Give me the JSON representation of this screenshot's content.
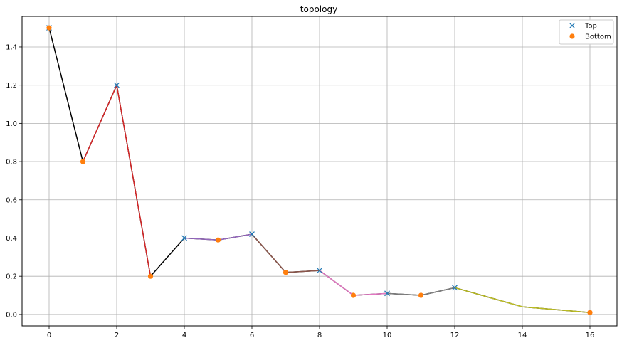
{
  "chart_data": {
    "type": "line",
    "title": "topology",
    "xlabel": "",
    "ylabel": "",
    "xlim": [
      -0.8,
      16.8
    ],
    "ylim": [
      -0.06,
      1.56
    ],
    "xticks": [
      0,
      2,
      4,
      6,
      8,
      10,
      12,
      14,
      16
    ],
    "yticks": [
      0.0,
      0.2,
      0.4,
      0.6,
      0.8,
      1.0,
      1.2,
      1.4
    ],
    "xtick_labels": [
      "0",
      "2",
      "4",
      "6",
      "8",
      "10",
      "12",
      "14",
      "16"
    ],
    "ytick_labels": [
      "0.0",
      "0.2",
      "0.4",
      "0.6",
      "0.8",
      "1.0",
      "1.2",
      "1.4"
    ],
    "grid": true,
    "legend_position": "top-right",
    "main_line": {
      "color": "#000000",
      "x": [
        0,
        1,
        2,
        3,
        4,
        5,
        6,
        7,
        8,
        9,
        10,
        11,
        12,
        14,
        16
      ],
      "y": [
        1.5,
        0.8,
        1.2,
        0.2,
        0.4,
        0.39,
        0.42,
        0.22,
        0.23,
        0.1,
        0.11,
        0.1,
        0.14,
        0.04,
        0.01
      ]
    },
    "segments": [
      {
        "color": "#d62728",
        "x": [
          1,
          2,
          3
        ],
        "y": [
          0.8,
          1.2,
          0.2
        ]
      },
      {
        "color": "#9467bd",
        "x": [
          4,
          5,
          6
        ],
        "y": [
          0.4,
          0.39,
          0.42
        ]
      },
      {
        "color": "#8c564b",
        "x": [
          6,
          7,
          8
        ],
        "y": [
          0.42,
          0.22,
          0.23
        ]
      },
      {
        "color": "#e377c2",
        "x": [
          8,
          9,
          10
        ],
        "y": [
          0.23,
          0.1,
          0.11
        ]
      },
      {
        "color": "#7f7f7f",
        "x": [
          10,
          11,
          12
        ],
        "y": [
          0.11,
          0.1,
          0.14
        ]
      },
      {
        "color": "#bcbd22",
        "x": [
          12,
          14,
          16
        ],
        "y": [
          0.14,
          0.04,
          0.01
        ]
      }
    ],
    "series": [
      {
        "name": "Top",
        "marker": "x",
        "color": "#1f77b4",
        "x": [
          0,
          2,
          4,
          6,
          8,
          10,
          12
        ],
        "y": [
          1.5,
          1.2,
          0.4,
          0.42,
          0.23,
          0.11,
          0.14
        ]
      },
      {
        "name": "Bottom",
        "marker": "o",
        "color": "#ff7f0e",
        "x": [
          0,
          1,
          3,
          5,
          7,
          9,
          11,
          16
        ],
        "y": [
          1.5,
          0.8,
          0.2,
          0.39,
          0.22,
          0.1,
          0.1,
          0.01
        ]
      }
    ]
  }
}
